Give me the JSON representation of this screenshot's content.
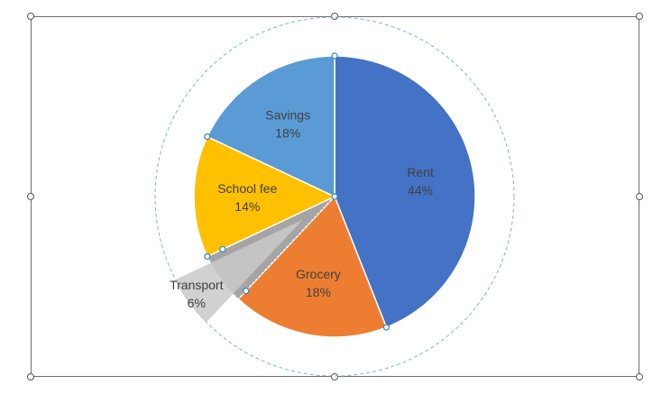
{
  "chart_data": {
    "type": "pie",
    "slices": [
      {
        "label": "Rent",
        "value": 44,
        "value_label": "44%",
        "color": "#4472C4"
      },
      {
        "label": "Grocery",
        "value": 18,
        "value_label": "18%",
        "color": "#ED7D31"
      },
      {
        "label": "Transport",
        "value": 6,
        "value_label": "6%",
        "color": "#A5A5A5",
        "exploded": true
      },
      {
        "label": "School fee",
        "value": 14,
        "value_label": "14%",
        "color": "#FFC000"
      },
      {
        "label": "Savings",
        "value": 18,
        "value_label": "18%",
        "color": "#5B9BD5"
      }
    ],
    "start_angle_deg": 0,
    "direction": "clockwise",
    "selected_slice": "Transport"
  }
}
